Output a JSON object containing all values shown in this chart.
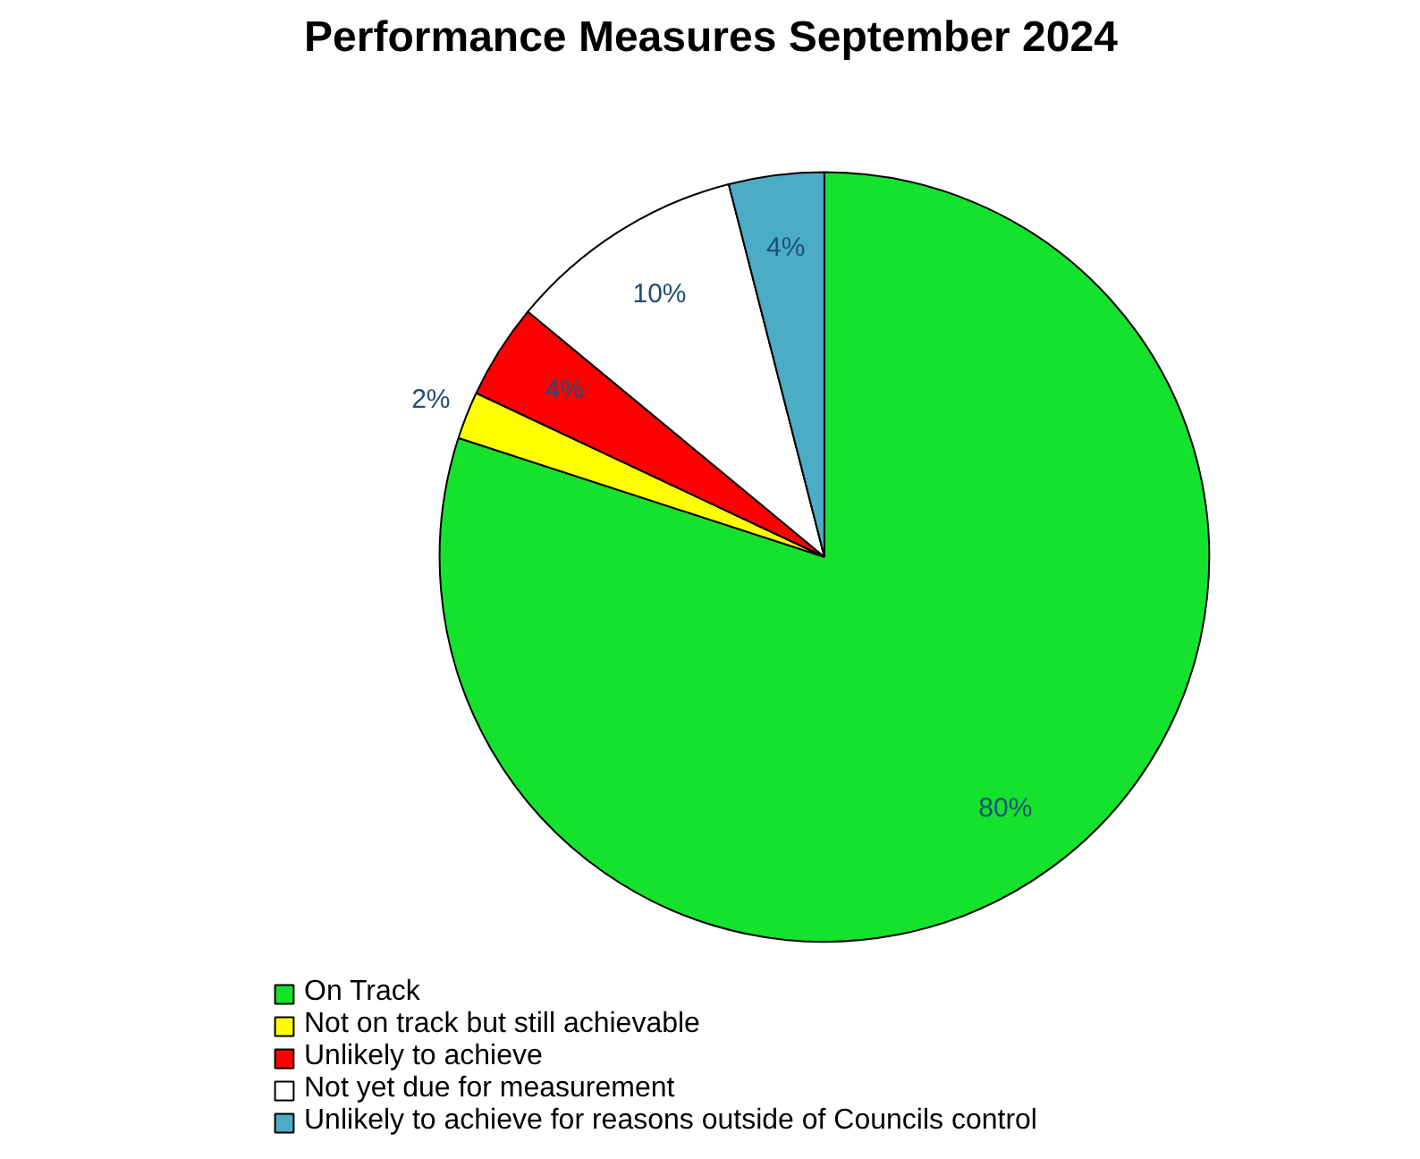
{
  "chart_data": {
    "type": "pie",
    "title": "Performance Measures September 2024",
    "categories": [
      "On Track",
      "Not on track but still achievable",
      "Unlikely to achieve",
      "Not yet due for measurement",
      "Unlikely to achieve for reasons outside of Councils control"
    ],
    "values": [
      80,
      2,
      4,
      10,
      4
    ],
    "colors": [
      "#14e22c",
      "#ffff00",
      "#ff0000",
      "#ffffff",
      "#4bacc6"
    ],
    "value_labels": [
      "80%",
      "2%",
      "4%",
      "10%",
      "4%"
    ],
    "legend": "bottom left"
  }
}
